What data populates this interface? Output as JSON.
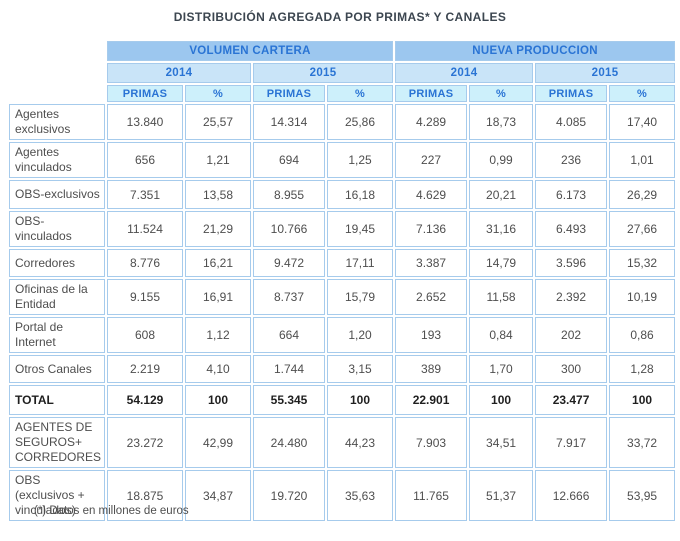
{
  "colors": {
    "title_text": "#3C4650",
    "header_text": "#2A74D4",
    "group_bg": "#9CC7EF",
    "year_bg": "#C9E4F8",
    "sub_bg": "#CDF0FB",
    "border_c": "#A6CBEC",
    "body_text": "#4E4E4E",
    "total_text": "#1F1F1F"
  },
  "chart_data": {
    "type": "table",
    "title": "DISTRIBUCIÓN AGREGADA POR PRIMAS* Y CANALES",
    "footnote": "(*)  Datos en millones de euros",
    "units": "millones de euros",
    "column_groups": [
      {
        "label": "VOLUMEN CARTERA",
        "years": [
          "2014",
          "2015"
        ]
      },
      {
        "label": "NUEVA PRODUCCION",
        "years": [
          "2014",
          "2015"
        ]
      }
    ],
    "sub_headers": [
      "PRIMAS",
      "%",
      "PRIMAS",
      "%",
      "PRIMAS",
      "%",
      "PRIMAS",
      "%"
    ],
    "rows": [
      {
        "label": "Agentes\nexclusivos",
        "bold": false,
        "values": [
          "13.840",
          "25,57",
          "14.314",
          "25,86",
          "4.289",
          "18,73",
          "4.085",
          "17,40"
        ]
      },
      {
        "label": "Agentes\nvinculados",
        "bold": false,
        "values": [
          "656",
          "1,21",
          "694",
          "1,25",
          "227",
          "0,99",
          "236",
          "1,01"
        ]
      },
      {
        "label": "OBS-exclusivos",
        "bold": false,
        "values": [
          "7.351",
          "13,58",
          "8.955",
          "16,18",
          "4.629",
          "20,21",
          "6.173",
          "26,29"
        ]
      },
      {
        "label": "OBS-\nvinculados",
        "bold": false,
        "values": [
          "11.524",
          "21,29",
          "10.766",
          "19,45",
          "7.136",
          "31,16",
          "6.493",
          "27,66"
        ]
      },
      {
        "label": "Corredores",
        "bold": false,
        "values": [
          "8.776",
          "16,21",
          "9.472",
          "17,11",
          "3.387",
          "14,79",
          "3.596",
          "15,32"
        ]
      },
      {
        "label": "Oficinas de la\nEntidad",
        "bold": false,
        "values": [
          "9.155",
          "16,91",
          "8.737",
          "15,79",
          "2.652",
          "11,58",
          "2.392",
          "10,19"
        ]
      },
      {
        "label": "Portal de\nInternet",
        "bold": false,
        "values": [
          "608",
          "1,12",
          "664",
          "1,20",
          "193",
          "0,84",
          "202",
          "0,86"
        ]
      },
      {
        "label": "Otros Canales",
        "bold": false,
        "values": [
          "2.219",
          "4,10",
          "1.744",
          "3,15",
          "389",
          "1,70",
          "300",
          "1,28"
        ]
      },
      {
        "label": "TOTAL",
        "bold": true,
        "values": [
          "54.129",
          "100",
          "55.345",
          "100",
          "22.901",
          "100",
          "23.477",
          "100"
        ]
      },
      {
        "label": "AGENTES DE\nSEGUROS+\nCORREDORES",
        "bold": false,
        "values": [
          "23.272",
          "42,99",
          "24.480",
          "44,23",
          "7.903",
          "34,51",
          "7.917",
          "33,72"
        ]
      },
      {
        "label": "OBS\n(exclusivos +\nvinculados)",
        "bold": false,
        "values": [
          "18.875",
          "34,87",
          "19.720",
          "35,63",
          "11.765",
          "51,37",
          "12.666",
          "53,95"
        ]
      }
    ]
  }
}
